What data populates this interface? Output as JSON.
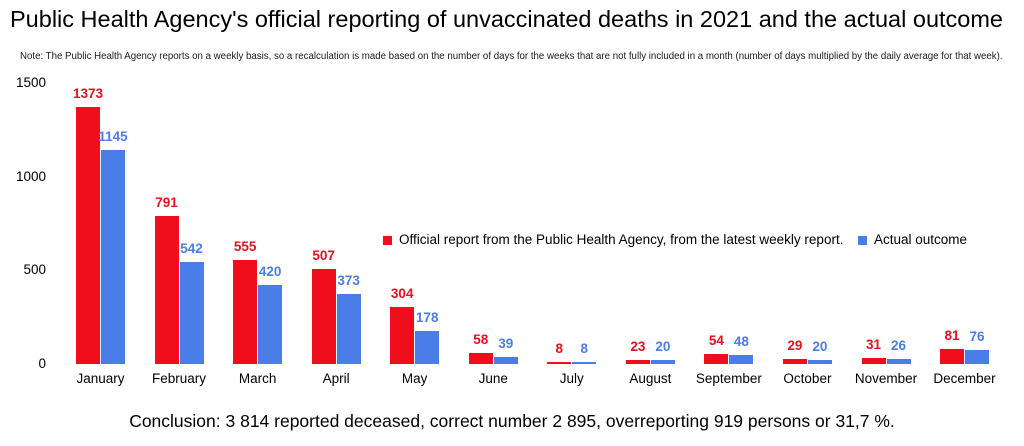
{
  "title": "Public Health Agency's official reporting of unvaccinated deaths in 2021 and the actual outcome",
  "note": "Note: The Public Health Agency reports on a weekly basis, so a recalculation is made based on the number of days for the weeks that are not fully included in a month (number of days multiplied by the daily average for that week).",
  "conclusion": "Conclusion: 3 814 reported deceased, correct number 2 895, overreporting 919 persons or 31,7 %.",
  "colors": {
    "official": "#f00d1c",
    "actual": "#4a7de8",
    "text": "#000000",
    "background": "#ffffff"
  },
  "chart_data": {
    "type": "bar",
    "title": "Public Health Agency's official reporting of unvaccinated deaths in 2021 and the actual outcome",
    "categories": [
      "January",
      "February",
      "March",
      "April",
      "May",
      "June",
      "July",
      "August",
      "September",
      "October",
      "November",
      "December"
    ],
    "series": [
      {
        "name": "Official report from the Public Health Agency, from the latest weekly report.",
        "color": "#f00d1c",
        "values": [
          1373,
          791,
          555,
          507,
          304,
          58,
          8,
          23,
          54,
          29,
          31,
          81
        ]
      },
      {
        "name": "Actual outcome",
        "color": "#4a7de8",
        "values": [
          1145,
          542,
          420,
          373,
          178,
          39,
          8,
          20,
          48,
          20,
          26,
          76
        ]
      }
    ],
    "xlabel": "",
    "ylabel": "",
    "yticks": [
      0,
      500,
      1000,
      1500
    ],
    "ylim": [
      0,
      1500
    ],
    "grid": false,
    "data_labels": true,
    "legend_position": "inside-middle-right"
  }
}
